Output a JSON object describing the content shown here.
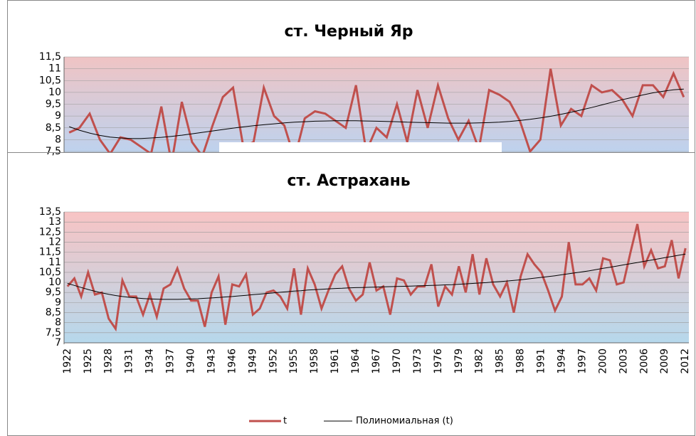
{
  "chart_data": [
    {
      "type": "line",
      "title": "ст. Черный Яр",
      "ylim": [
        7.5,
        11.5
      ],
      "yticks": [
        {
          "value": 7.5,
          "label": "7,5"
        },
        8,
        {
          "value": 8.5,
          "label": "8,5"
        },
        9,
        {
          "value": 9.5,
          "label": "9,5"
        },
        10,
        {
          "value": 10.5,
          "label": "10,5"
        },
        11,
        {
          "value": 11.5,
          "label": "11,5"
        }
      ],
      "grid": true,
      "series": [
        {
          "color": "#c0504d",
          "values": [
            8.3,
            8.5,
            9.1,
            8.0,
            7.4,
            8.1,
            8.0,
            7.7,
            7.4,
            9.4,
            7.0,
            9.6,
            7.9,
            7.3,
            8.6,
            9.8,
            10.2,
            7.7,
            7.9,
            10.2,
            9.0,
            8.6,
            7.2,
            8.9,
            9.2,
            9.1,
            8.8,
            8.5,
            10.3,
            7.5,
            8.5,
            8.1,
            9.5,
            7.9,
            10.1,
            8.5,
            10.3,
            8.9,
            8.0,
            8.8,
            7.6,
            10.1,
            9.9,
            9.6,
            8.8,
            7.5,
            8.0,
            11.0,
            8.6,
            9.3,
            9.0,
            10.3,
            10.0,
            10.1,
            9.7,
            9.0,
            10.3,
            10.3,
            9.8,
            10.8,
            9.8
          ]
        },
        {
          "color": "#000000",
          "values": [
            8.55,
            8.4,
            8.28,
            8.18,
            8.11,
            8.07,
            8.05,
            8.05,
            8.07,
            8.1,
            8.14,
            8.19,
            8.25,
            8.31,
            8.37,
            8.43,
            8.49,
            8.54,
            8.59,
            8.63,
            8.67,
            8.71,
            8.74,
            8.76,
            8.78,
            8.79,
            8.8,
            8.8,
            8.8,
            8.79,
            8.78,
            8.77,
            8.76,
            8.74,
            8.73,
            8.72,
            8.71,
            8.7,
            8.7,
            8.7,
            8.71,
            8.72,
            8.74,
            8.77,
            8.81,
            8.86,
            8.92,
            8.99,
            9.07,
            9.16,
            9.26,
            9.36,
            9.47,
            9.58,
            9.69,
            9.79,
            9.89,
            9.98,
            10.05,
            10.11,
            10.14
          ]
        }
      ]
    },
    {
      "type": "line",
      "title": "ст. Астрахань",
      "categories": [
        "1922",
        null,
        null,
        "1925",
        null,
        null,
        "1928",
        null,
        null,
        "1931",
        null,
        null,
        "1934",
        null,
        null,
        "1937",
        null,
        null,
        "1940",
        null,
        null,
        "1943",
        null,
        null,
        "1946",
        null,
        null,
        "1949",
        null,
        null,
        "1952",
        null,
        null,
        "1955",
        null,
        null,
        "1958",
        null,
        null,
        "1961",
        null,
        null,
        "1964",
        null,
        null,
        "1967",
        null,
        null,
        "1970",
        null,
        null,
        "1973",
        null,
        null,
        "1976",
        null,
        null,
        "1979",
        null,
        null,
        "1982",
        null,
        null,
        "1985",
        null,
        null,
        "1988",
        null,
        null,
        "1991",
        null,
        null,
        "1994",
        null,
        null,
        "1997",
        null,
        null,
        "2000",
        null,
        null,
        "2003",
        null,
        null,
        "2006",
        null,
        null,
        "2009",
        null,
        null,
        "2012"
      ],
      "ylim": [
        7,
        13.5
      ],
      "yticks": [
        7,
        {
          "value": 7.5,
          "label": "7,5"
        },
        8,
        {
          "value": 8.5,
          "label": "8,5"
        },
        9,
        {
          "value": 9.5,
          "label": "9,5"
        },
        10,
        {
          "value": 10.5,
          "label": "10,5"
        },
        11,
        {
          "value": 11.5,
          "label": "11,5"
        },
        12,
        {
          "value": 12.5,
          "label": "12,5"
        },
        13,
        {
          "value": 13.5,
          "label": "13,5"
        }
      ],
      "grid": true,
      "series": [
        {
          "name": "t",
          "color": "#c0504d",
          "values": [
            9.8,
            10.2,
            9.3,
            10.5,
            9.4,
            9.5,
            8.2,
            7.7,
            10.1,
            9.3,
            9.3,
            8.4,
            9.4,
            8.3,
            9.7,
            9.9,
            10.7,
            9.7,
            9.1,
            9.1,
            7.8,
            9.5,
            10.3,
            7.9,
            9.9,
            9.8,
            10.4,
            8.4,
            8.7,
            9.5,
            9.6,
            9.3,
            8.7,
            10.7,
            8.4,
            10.7,
            9.9,
            8.7,
            9.6,
            10.4,
            10.8,
            9.7,
            9.1,
            9.4,
            11.0,
            9.6,
            9.8,
            8.4,
            10.2,
            10.1,
            9.4,
            9.8,
            9.8,
            10.9,
            8.8,
            9.8,
            9.4,
            10.8,
            9.5,
            11.4,
            9.4,
            11.2,
            9.9,
            9.3,
            10.0,
            8.5,
            10.3,
            11.4,
            10.9,
            10.5,
            9.6,
            8.6,
            9.3,
            12.0,
            9.9,
            9.9,
            10.2,
            9.6,
            11.2,
            11.1,
            9.9,
            10.0,
            11.5,
            12.9,
            10.8,
            11.6,
            10.7,
            10.8,
            12.1,
            10.2,
            11.7
          ]
        },
        {
          "name": "Полиномиальная (t)",
          "color": "#000000",
          "values": [
            9.95,
            9.85,
            9.75,
            9.65,
            9.56,
            9.48,
            9.41,
            9.35,
            9.3,
            9.26,
            9.23,
            9.2,
            9.18,
            9.17,
            9.16,
            9.16,
            9.16,
            9.17,
            9.18,
            9.19,
            9.21,
            9.23,
            9.25,
            9.28,
            9.3,
            9.33,
            9.36,
            9.39,
            9.42,
            9.45,
            9.48,
            9.51,
            9.54,
            9.57,
            9.59,
            9.62,
            9.64,
            9.66,
            9.68,
            9.7,
            9.71,
            9.73,
            9.74,
            9.75,
            9.76,
            9.77,
            9.78,
            9.79,
            9.8,
            9.81,
            9.82,
            9.83,
            9.84,
            9.85,
            9.86,
            9.88,
            9.89,
            9.91,
            9.93,
            9.95,
            9.97,
            9.99,
            10.02,
            10.04,
            10.07,
            10.1,
            10.13,
            10.17,
            10.21,
            10.25,
            10.29,
            10.33,
            10.38,
            10.43,
            10.48,
            10.53,
            10.58,
            10.64,
            10.7,
            10.75,
            10.81,
            10.87,
            10.93,
            10.99,
            11.05,
            11.11,
            11.17,
            11.23,
            11.29,
            11.35,
            11.41
          ]
        }
      ]
    }
  ]
}
